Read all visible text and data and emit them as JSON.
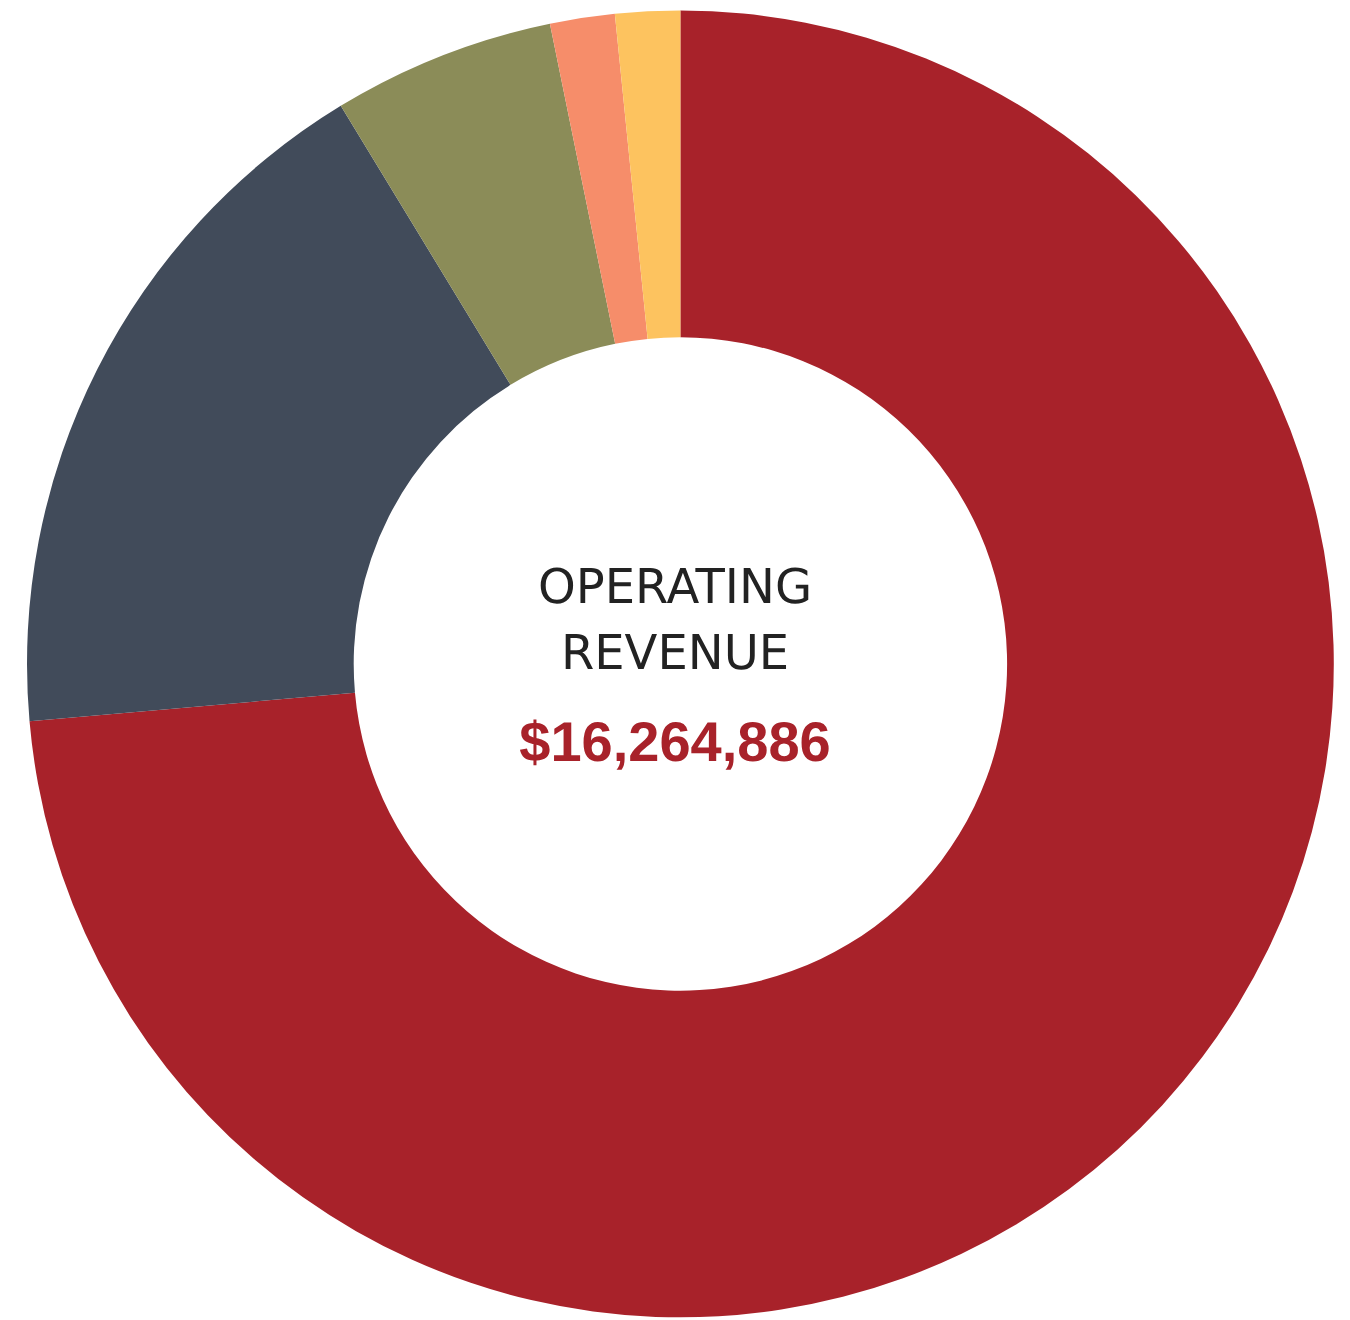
{
  "chart_data": {
    "type": "donut",
    "title": "OPERATING\nREVENUE",
    "subtitle": "$16,264,886",
    "categories": [
      null,
      null,
      null,
      null,
      null
    ],
    "values": [
      73.6,
      17.7,
      5.5,
      1.6,
      1.6
    ],
    "colors": [
      "#a8222a",
      "#414b5a",
      "#8b8c58",
      "#f68d6a",
      "#fdc35f"
    ]
  }
}
